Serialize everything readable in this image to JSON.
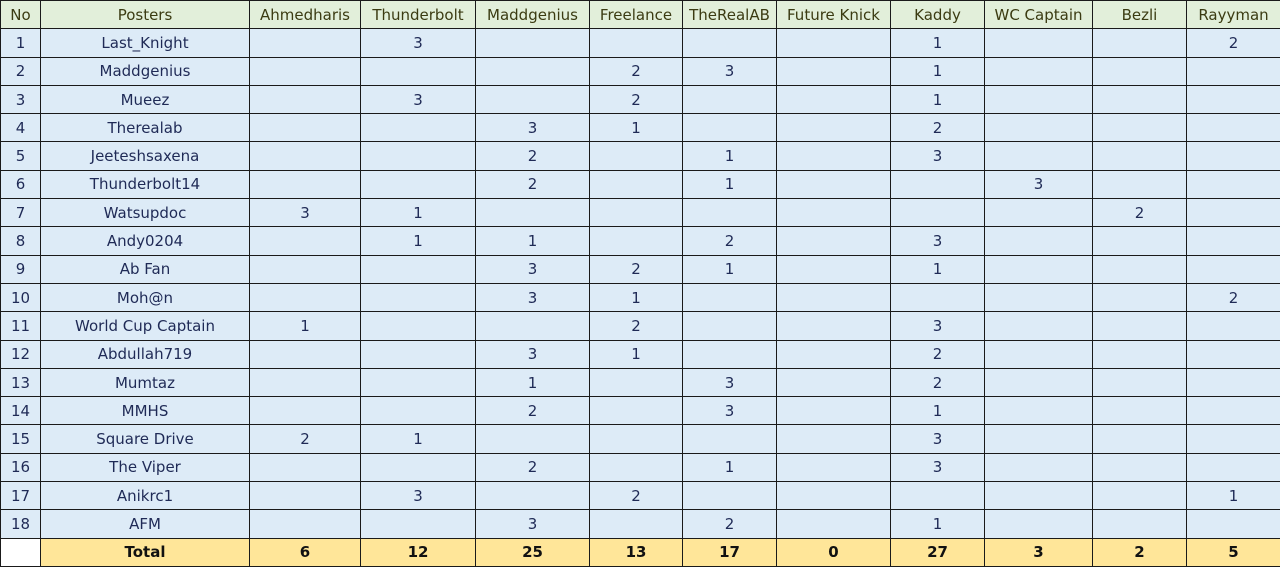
{
  "colors": {
    "header_bg": "#e2efda",
    "row_bg": "#ddebf7",
    "total_bg": "#ffe699"
  },
  "headers": [
    "No",
    "Posters",
    "Ahmedharis",
    "Thunderbolt",
    "Maddgenius",
    "Freelance",
    "TheRealAB",
    "Future Knick",
    "Kaddy",
    "WC Captain",
    "Bezli",
    "Rayyman"
  ],
  "rows": [
    [
      "1",
      "Last_Knight",
      "",
      "3",
      "",
      "",
      "",
      "",
      "1",
      "",
      "",
      "2"
    ],
    [
      "2",
      "Maddgenius",
      "",
      "",
      "",
      "2",
      "3",
      "",
      "1",
      "",
      "",
      ""
    ],
    [
      "3",
      "Mueez",
      "",
      "3",
      "",
      "2",
      "",
      "",
      "1",
      "",
      "",
      ""
    ],
    [
      "4",
      "Therealab",
      "",
      "",
      "3",
      "1",
      "",
      "",
      "2",
      "",
      "",
      ""
    ],
    [
      "5",
      "Jeeteshsaxena",
      "",
      "",
      "2",
      "",
      "1",
      "",
      "3",
      "",
      "",
      ""
    ],
    [
      "6",
      "Thunderbolt14",
      "",
      "",
      "2",
      "",
      "1",
      "",
      "",
      "3",
      "",
      ""
    ],
    [
      "7",
      "Watsupdoc",
      "3",
      "1",
      "",
      "",
      "",
      "",
      "",
      "",
      "2",
      ""
    ],
    [
      "8",
      "Andy0204",
      "",
      "1",
      "1",
      "",
      "2",
      "",
      "3",
      "",
      "",
      ""
    ],
    [
      "9",
      "Ab Fan",
      "",
      "",
      "3",
      "2",
      "1",
      "",
      "1",
      "",
      "",
      ""
    ],
    [
      "10",
      "Moh@n",
      "",
      "",
      "3",
      "1",
      "",
      "",
      "",
      "",
      "",
      "2"
    ],
    [
      "11",
      "World Cup Captain",
      "1",
      "",
      "",
      "2",
      "",
      "",
      "3",
      "",
      "",
      ""
    ],
    [
      "12",
      "Abdullah719",
      "",
      "",
      "3",
      "1",
      "",
      "",
      "2",
      "",
      "",
      ""
    ],
    [
      "13",
      "Mumtaz",
      "",
      "",
      "1",
      "",
      "3",
      "",
      "2",
      "",
      "",
      ""
    ],
    [
      "14",
      "MMHS",
      "",
      "",
      "2",
      "",
      "3",
      "",
      "1",
      "",
      "",
      ""
    ],
    [
      "15",
      "Square Drive",
      "2",
      "1",
      "",
      "",
      "",
      "",
      "3",
      "",
      "",
      ""
    ],
    [
      "16",
      "The Viper",
      "",
      "",
      "2",
      "",
      "1",
      "",
      "3",
      "",
      "",
      ""
    ],
    [
      "17",
      "Anikrc1",
      "",
      "3",
      "",
      "2",
      "",
      "",
      "",
      "",
      "",
      "1"
    ],
    [
      "18",
      "AFM",
      "",
      "",
      "3",
      "",
      "2",
      "",
      "1",
      "",
      "",
      ""
    ]
  ],
  "total": {
    "label": "Total",
    "values": [
      "6",
      "12",
      "25",
      "13",
      "17",
      "0",
      "27",
      "3",
      "2",
      "5"
    ]
  }
}
